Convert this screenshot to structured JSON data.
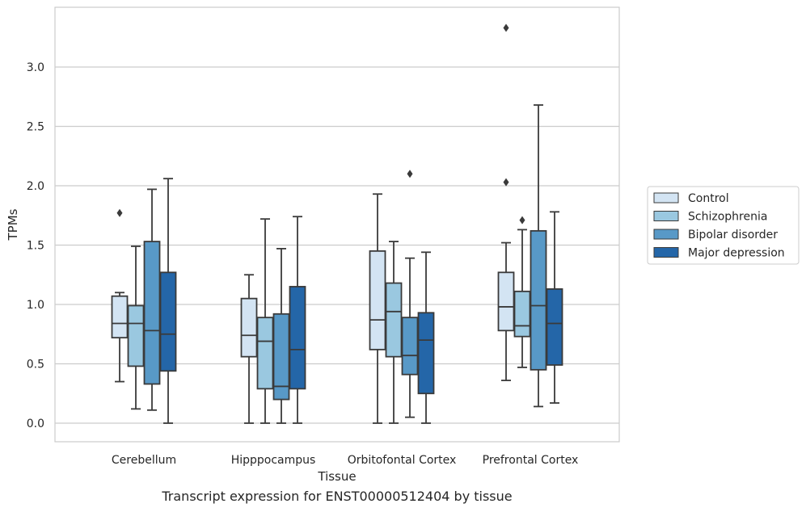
{
  "caption": "Transcript expression for ENST00000512404 by tissue",
  "chart_data": {
    "type": "box",
    "xlabel": "Tissue",
    "ylabel": "TPMs",
    "ylim": [
      -0.16,
      3.51
    ],
    "yticks": [
      "0.0",
      "0.5",
      "1.0",
      "1.5",
      "2.0",
      "2.5",
      "3.0"
    ],
    "categories": [
      "Cerebellum",
      "Hipppocampus",
      "Orbitofontal Cortex",
      "Prefrontal Cortex"
    ],
    "grid": "horizontal",
    "legend_position": "right",
    "series": [
      {
        "name": "Control",
        "color": "#d3e4f3",
        "boxes": [
          {
            "whislo": 0.35,
            "q1": 0.72,
            "med": 0.84,
            "q3": 1.07,
            "whishi": 1.1,
            "fliers": [
              1.77
            ]
          },
          {
            "whislo": 0.0,
            "q1": 0.56,
            "med": 0.74,
            "q3": 1.05,
            "whishi": 1.25,
            "fliers": []
          },
          {
            "whislo": 0.0,
            "q1": 0.62,
            "med": 0.87,
            "q3": 1.45,
            "whishi": 1.93,
            "fliers": []
          },
          {
            "whislo": 0.36,
            "q1": 0.78,
            "med": 0.98,
            "q3": 1.27,
            "whishi": 1.52,
            "fliers": [
              2.03,
              3.33
            ]
          }
        ]
      },
      {
        "name": "Schizophrenia",
        "color": "#9ac8e0",
        "boxes": [
          {
            "whislo": 0.12,
            "q1": 0.48,
            "med": 0.84,
            "q3": 0.99,
            "whishi": 1.49,
            "fliers": []
          },
          {
            "whislo": 0.0,
            "q1": 0.29,
            "med": 0.69,
            "q3": 0.89,
            "whishi": 1.72,
            "fliers": []
          },
          {
            "whislo": 0.0,
            "q1": 0.56,
            "med": 0.94,
            "q3": 1.18,
            "whishi": 1.53,
            "fliers": []
          },
          {
            "whislo": 0.47,
            "q1": 0.73,
            "med": 0.82,
            "q3": 1.11,
            "whishi": 1.63,
            "fliers": [
              1.71
            ]
          }
        ]
      },
      {
        "name": "Bipolar disorder",
        "color": "#5899c7",
        "boxes": [
          {
            "whislo": 0.11,
            "q1": 0.33,
            "med": 0.78,
            "q3": 1.53,
            "whishi": 1.97,
            "fliers": []
          },
          {
            "whislo": 0.0,
            "q1": 0.2,
            "med": 0.31,
            "q3": 0.92,
            "whishi": 1.47,
            "fliers": []
          },
          {
            "whislo": 0.05,
            "q1": 0.41,
            "med": 0.57,
            "q3": 0.89,
            "whishi": 1.39,
            "fliers": [
              2.1
            ]
          },
          {
            "whislo": 0.14,
            "q1": 0.45,
            "med": 0.99,
            "q3": 1.62,
            "whishi": 2.68,
            "fliers": []
          }
        ]
      },
      {
        "name": "Major depression",
        "color": "#2466a8",
        "boxes": [
          {
            "whislo": 0.0,
            "q1": 0.44,
            "med": 0.75,
            "q3": 1.27,
            "whishi": 2.06,
            "fliers": []
          },
          {
            "whislo": 0.0,
            "q1": 0.29,
            "med": 0.62,
            "q3": 1.15,
            "whishi": 1.74,
            "fliers": []
          },
          {
            "whislo": 0.0,
            "q1": 0.25,
            "med": 0.7,
            "q3": 0.93,
            "whishi": 1.44,
            "fliers": []
          },
          {
            "whislo": 0.17,
            "q1": 0.49,
            "med": 0.84,
            "q3": 1.13,
            "whishi": 1.78,
            "fliers": []
          }
        ]
      }
    ]
  }
}
